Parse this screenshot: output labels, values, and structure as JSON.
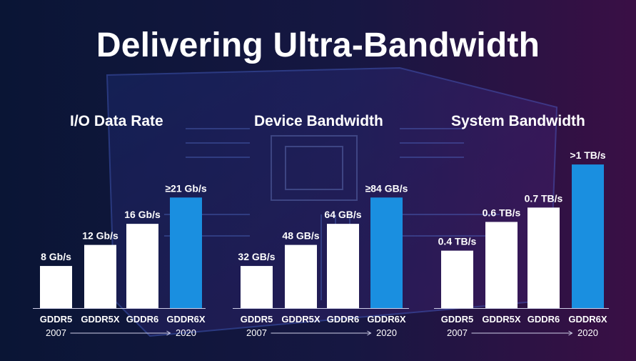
{
  "title": "Delivering Ultra-Bandwidth",
  "colors": {
    "bar_default": "#ffffff",
    "bar_highlight": "#1a8fe0",
    "text": "#ffffff",
    "axis": "#cfcfe8"
  },
  "chart_data": [
    {
      "type": "bar",
      "title": "I/O Data Rate",
      "categories": [
        "GDDR5",
        "GDDR5X",
        "GDDR6",
        "GDDR6X"
      ],
      "values": [
        8,
        12,
        16,
        21
      ],
      "value_labels": [
        "8 Gb/s",
        "12 Gb/s",
        "16 Gb/s",
        "≥21 Gb/s"
      ],
      "highlight_index": 3,
      "start_year": "2007",
      "end_year": "2020",
      "ylim": [
        0,
        30
      ]
    },
    {
      "type": "bar",
      "title": "Device Bandwidth",
      "categories": [
        "GDDR5",
        "GDDR5X",
        "GDDR6",
        "GDDR6X"
      ],
      "values": [
        32,
        48,
        64,
        84
      ],
      "value_labels": [
        "32 GB/s",
        "48 GB/s",
        "64 GB/s",
        "≥84 GB/s"
      ],
      "highlight_index": 3,
      "start_year": "2007",
      "end_year": "2020",
      "ylim": [
        0,
        120
      ]
    },
    {
      "type": "bar",
      "title": "System Bandwidth",
      "categories": [
        "GDDR5",
        "GDDR5X",
        "GDDR6",
        "GDDR6X"
      ],
      "values": [
        0.4,
        0.6,
        0.7,
        1.0
      ],
      "value_labels": [
        "0.4 TB/s",
        "0.6 TB/s",
        "0.7 TB/s",
        ">1 TB/s"
      ],
      "highlight_index": 3,
      "start_year": "2007",
      "end_year": "2020",
      "ylim": [
        0,
        1.1
      ]
    }
  ]
}
